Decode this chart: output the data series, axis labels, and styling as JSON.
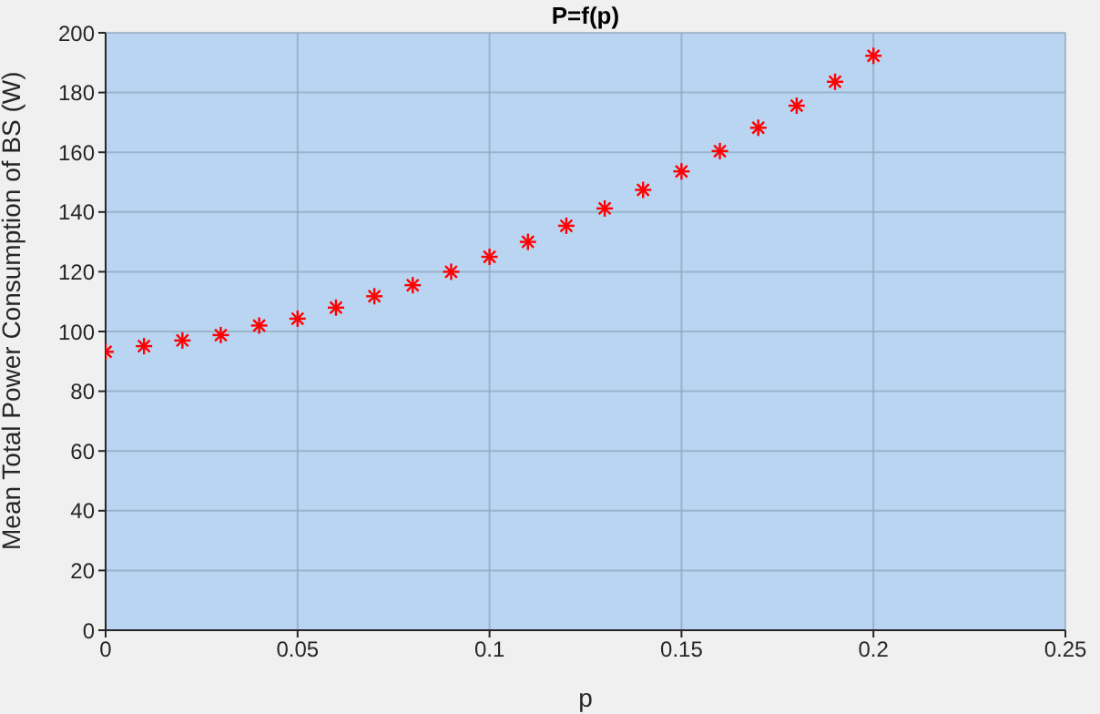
{
  "chart_data": {
    "type": "scatter",
    "title": "P=f(p)",
    "xlabel": "p",
    "ylabel": "Mean Total Power Consumption of BS (W)",
    "x": [
      0,
      0.01,
      0.02,
      0.03,
      0.04,
      0.05,
      0.06,
      0.07,
      0.08,
      0.09,
      0.1,
      0.11,
      0.12,
      0.13,
      0.14,
      0.15,
      0.16,
      0.17,
      0.18,
      0.19,
      0.2
    ],
    "series": [
      {
        "color": "#ff0000",
        "values": [
          93.2,
          95.1,
          97,
          98.8,
          102,
          104.3,
          108,
          111.8,
          115.5,
          120,
          125,
          130,
          135.4,
          141.2,
          147.4,
          153.6,
          160.4,
          168.2,
          175.6,
          183.6,
          192.3
        ]
      }
    ],
    "xlim": [
      0,
      0.25
    ],
    "xticks": [
      0,
      0.05,
      0.1,
      0.15,
      0.2,
      0.25
    ],
    "ylim": [
      0,
      200
    ],
    "yticks": [
      0,
      20,
      40,
      60,
      80,
      100,
      120,
      140,
      160,
      180,
      200
    ],
    "grid": true,
    "marker": "cross"
  }
}
